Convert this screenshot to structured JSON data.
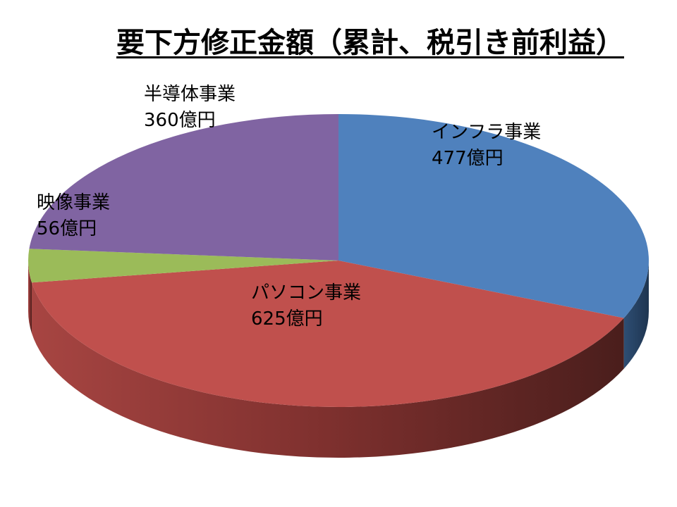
{
  "chart_data": {
    "type": "pie",
    "title": "要下方修正金額（累計、税引き前利益）",
    "unit": "億円",
    "legend": "none",
    "slices": [
      {
        "label": "インフラ事業",
        "value": 477,
        "value_label": "477億円",
        "color": "#4F81BD"
      },
      {
        "label": "パソコン事業",
        "value": 625,
        "value_label": "625億円",
        "color": "#C0504D"
      },
      {
        "label": "映像事業",
        "value": 56,
        "value_label": "56億円",
        "color": "#9BBB59"
      },
      {
        "label": "半導体事業",
        "value": 360,
        "value_label": "360億円",
        "color": "#8064A2"
      }
    ]
  }
}
